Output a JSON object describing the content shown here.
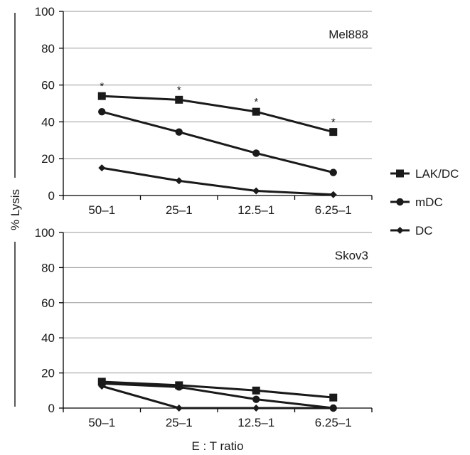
{
  "y_axis_title": "% Lysis",
  "x_axis_title": "E : T ratio",
  "legend": [
    {
      "name": "LAK/DC",
      "marker": "square"
    },
    {
      "name": "mDC",
      "marker": "circle"
    },
    {
      "name": "DC",
      "marker": "diamond"
    }
  ],
  "chart_data": [
    {
      "type": "line",
      "panel_label": "Mel888",
      "categories": [
        "50–1",
        "25–1",
        "12.5–1",
        "6.25–1"
      ],
      "yticks": [
        "0",
        "20",
        "40",
        "60",
        "80",
        "100"
      ],
      "ylim": [
        0,
        100
      ],
      "ylabel": "% Lysis",
      "xlabel": "",
      "grid": true,
      "series": [
        {
          "name": "LAK/DC",
          "marker": "square",
          "values": [
            54,
            52,
            45.5,
            34.5
          ]
        },
        {
          "name": "mDC",
          "marker": "circle",
          "values": [
            45.5,
            34.5,
            23,
            12.5
          ]
        },
        {
          "name": "DC",
          "marker": "diamond",
          "values": [
            15,
            8,
            2.5,
            0.5
          ]
        }
      ],
      "annotations": [
        {
          "text": "*",
          "category": "50–1"
        },
        {
          "text": "*",
          "category": "25–1"
        },
        {
          "text": "*",
          "category": "12.5–1"
        },
        {
          "text": "*",
          "category": "6.25–1"
        }
      ]
    },
    {
      "type": "line",
      "panel_label": "Skov3",
      "categories": [
        "50–1",
        "25–1",
        "12.5–1",
        "6.25–1"
      ],
      "yticks": [
        "0",
        "20",
        "40",
        "60",
        "80",
        "100"
      ],
      "ylim": [
        0,
        100
      ],
      "ylabel": "% Lysis",
      "xlabel": "E : T ratio",
      "grid": true,
      "series": [
        {
          "name": "LAK/DC",
          "marker": "square",
          "values": [
            15,
            13,
            10,
            6
          ]
        },
        {
          "name": "mDC",
          "marker": "circle",
          "values": [
            14,
            12,
            5,
            0
          ]
        },
        {
          "name": "DC",
          "marker": "diamond",
          "values": [
            12.5,
            0,
            0,
            0
          ]
        }
      ],
      "annotations": []
    }
  ]
}
